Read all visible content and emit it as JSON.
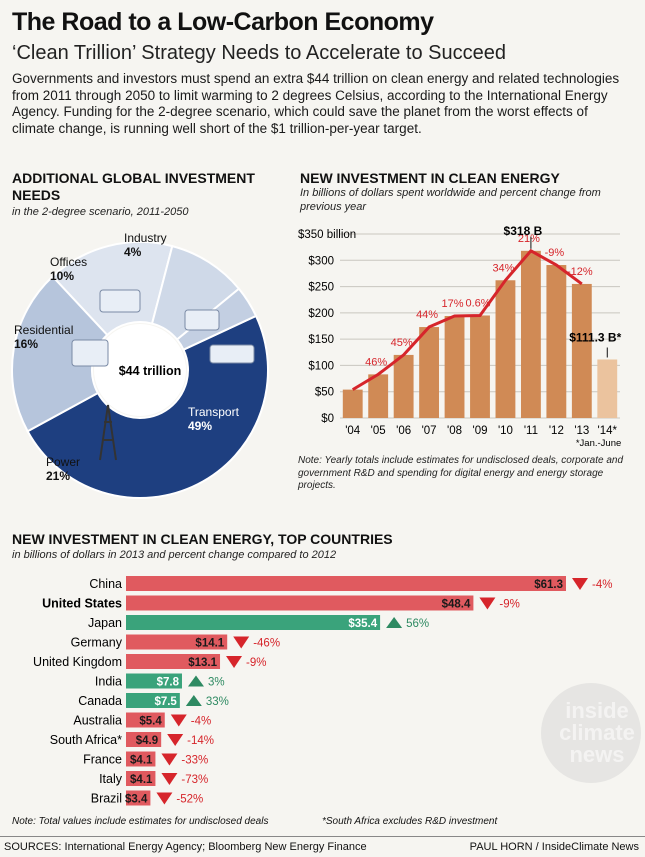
{
  "header": {
    "title": "The Road to a Low-Carbon Economy",
    "subtitle": "‘Clean Trillion’ Strategy Needs to Accelerate to Succeed",
    "intro": "Governments and investors must spend an extra $44 trillion on clean energy and related technologies from 2011 through 2050 to limit warming to 2 degrees Celsius, according to the International Energy Agency. Funding for the 2-degree scenario, which could save the planet from the worst effects of climate change, is running well short of the $1 trillion-per-year target."
  },
  "colors": {
    "bar_orange": "#d08a55",
    "bar_light": "#ebc39e",
    "trend_red": "#d6252b",
    "country_red": "#e05a5f",
    "country_green": "#3aa37b",
    "donut_dark": "#1e3f80",
    "donut_light": "#b6c5dc"
  },
  "chart_data": [
    {
      "type": "pie",
      "title": "ADDITIONAL GLOBAL INVESTMENT NEEDS",
      "subtitle": "in the 2-degree scenario, 2011-2050",
      "center_label": "$44 trillion",
      "slices": [
        {
          "label": "Transport",
          "value": 49,
          "display": "49%"
        },
        {
          "label": "Power",
          "value": 21,
          "display": "21%"
        },
        {
          "label": "Residential",
          "value": 16,
          "display": "16%"
        },
        {
          "label": "Offices",
          "value": 10,
          "display": "10%"
        },
        {
          "label": "Industry",
          "value": 4,
          "display": "4%"
        }
      ]
    },
    {
      "type": "bar",
      "title": "NEW INVESTMENT IN CLEAN ENERGY",
      "subtitle": "In billions of dollars spent worldwide and percent change from previous year",
      "categories": [
        "'04",
        "'05",
        "'06",
        "'07",
        "'08",
        "'09",
        "'10",
        "'11",
        "'12",
        "'13",
        "'14*"
      ],
      "values": [
        54,
        83,
        120,
        173,
        194,
        195,
        262,
        318,
        291,
        255,
        111.3
      ],
      "changes": [
        "",
        "46%",
        "45%",
        "44%",
        "17%",
        "0.6%",
        "34%",
        "21%",
        "-9%",
        "-12%",
        ""
      ],
      "highlight_labels": {
        "peak": "$318 B",
        "last": "$111.3 B*"
      },
      "y_ticks": [
        "$0",
        "$50",
        "$100",
        "$150",
        "$200",
        "$250",
        "$300",
        "$350 billion"
      ],
      "ylim": [
        0,
        350
      ],
      "footnote_marker": "*Jan.-June",
      "note": "Note: Yearly totals include estimates for undisclosed deals, corporate and government R&D and spending for digital energy and energy storage projects."
    },
    {
      "type": "bar",
      "orientation": "horizontal",
      "title": "NEW INVESTMENT IN CLEAN ENERGY, TOP COUNTRIES",
      "subtitle": "in billions of dollars in 2013 and percent change compared to 2012",
      "rows": [
        {
          "country": "China",
          "value": 61.3,
          "label": "$61.3",
          "change": "-4%",
          "direction": "down"
        },
        {
          "country": "United States",
          "value": 48.4,
          "label": "$48.4",
          "change": "-9%",
          "direction": "down",
          "bold": true
        },
        {
          "country": "Japan",
          "value": 35.4,
          "label": "$35.4",
          "change": "56%",
          "direction": "up"
        },
        {
          "country": "Germany",
          "value": 14.1,
          "label": "$14.1",
          "change": "-46%",
          "direction": "down"
        },
        {
          "country": "United Kingdom",
          "value": 13.1,
          "label": "$13.1",
          "change": "-9%",
          "direction": "down"
        },
        {
          "country": "India",
          "value": 7.8,
          "label": "$7.8",
          "change": "3%",
          "direction": "up"
        },
        {
          "country": "Canada",
          "value": 7.5,
          "label": "$7.5",
          "change": "33%",
          "direction": "up"
        },
        {
          "country": "Australia",
          "value": 5.4,
          "label": "$5.4",
          "change": "-4%",
          "direction": "down"
        },
        {
          "country": "South Africa*",
          "value": 4.9,
          "label": "$4.9",
          "change": "-14%",
          "direction": "down"
        },
        {
          "country": "France",
          "value": 4.1,
          "label": "$4.1",
          "change": "-33%",
          "direction": "down"
        },
        {
          "country": "Italy",
          "value": 4.1,
          "label": "$4.1",
          "change": "-73%",
          "direction": "down"
        },
        {
          "country": "Brazil",
          "value": 3.4,
          "label": "$3.4",
          "change": "-52%",
          "direction": "down"
        }
      ],
      "note_left": "Note: Total values include estimates for undisclosed deals",
      "note_right": "*South Africa excludes R&D investment"
    }
  ],
  "footer": {
    "sources": "SOURCES: International Energy Agency; Bloomberg New Energy Finance",
    "credit": "PAUL HORN / InsideClimate News",
    "watermark_line1": "inside",
    "watermark_line2": "climate",
    "watermark_line3": "news"
  }
}
